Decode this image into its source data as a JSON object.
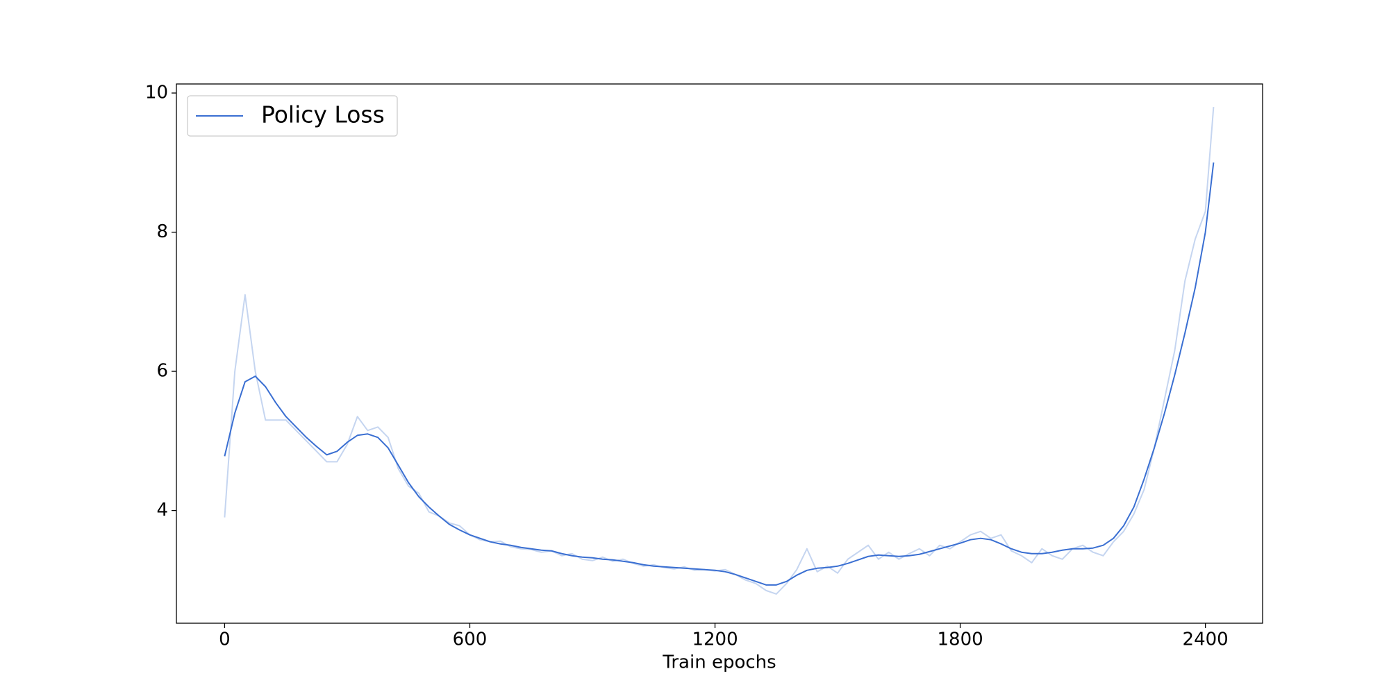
{
  "chart_data": {
    "type": "line",
    "xlabel": "Train epochs",
    "x": [
      0,
      25,
      50,
      75,
      100,
      125,
      150,
      175,
      200,
      225,
      250,
      275,
      300,
      325,
      350,
      375,
      400,
      425,
      450,
      475,
      500,
      525,
      550,
      575,
      600,
      625,
      650,
      675,
      700,
      725,
      750,
      775,
      800,
      825,
      850,
      875,
      900,
      925,
      950,
      975,
      1000,
      1025,
      1050,
      1075,
      1100,
      1125,
      1150,
      1175,
      1200,
      1225,
      1250,
      1275,
      1300,
      1325,
      1350,
      1375,
      1400,
      1425,
      1450,
      1475,
      1500,
      1525,
      1550,
      1575,
      1600,
      1625,
      1650,
      1675,
      1700,
      1725,
      1750,
      1775,
      1800,
      1825,
      1850,
      1875,
      1900,
      1925,
      1950,
      1975,
      2000,
      2025,
      2050,
      2075,
      2100,
      2125,
      2150,
      2175,
      2200,
      2225,
      2250,
      2275,
      2300,
      2325,
      2350,
      2375,
      2400,
      2420
    ],
    "series": [
      {
        "color": "#c5d5f0",
        "values": [
          3.9,
          6.0,
          7.1,
          6.0,
          5.3,
          5.3,
          5.3,
          5.15,
          5.0,
          4.85,
          4.7,
          4.7,
          4.95,
          5.35,
          5.15,
          5.2,
          5.05,
          4.6,
          4.35,
          4.25,
          3.98,
          3.92,
          3.82,
          3.78,
          3.65,
          3.58,
          3.55,
          3.56,
          3.48,
          3.45,
          3.44,
          3.4,
          3.42,
          3.35,
          3.38,
          3.3,
          3.28,
          3.33,
          3.27,
          3.3,
          3.24,
          3.2,
          3.22,
          3.18,
          3.16,
          3.19,
          3.14,
          3.15,
          3.13,
          3.15,
          3.08,
          3.0,
          2.95,
          2.85,
          2.8,
          2.95,
          3.15,
          3.45,
          3.12,
          3.2,
          3.1,
          3.3,
          3.4,
          3.5,
          3.3,
          3.4,
          3.3,
          3.38,
          3.45,
          3.35,
          3.5,
          3.45,
          3.55,
          3.65,
          3.7,
          3.6,
          3.65,
          3.42,
          3.35,
          3.25,
          3.45,
          3.35,
          3.3,
          3.45,
          3.5,
          3.4,
          3.35,
          3.55,
          3.7,
          3.95,
          4.3,
          4.9,
          5.6,
          6.3,
          7.3,
          7.9,
          8.3,
          9.8
        ]
      },
      {
        "name": "Policy Loss",
        "color": "#3a6fd2",
        "values": [
          4.78,
          5.4,
          5.85,
          5.93,
          5.78,
          5.55,
          5.35,
          5.2,
          5.05,
          4.92,
          4.8,
          4.85,
          4.98,
          5.08,
          5.1,
          5.05,
          4.9,
          4.65,
          4.4,
          4.2,
          4.05,
          3.92,
          3.8,
          3.72,
          3.65,
          3.6,
          3.55,
          3.52,
          3.5,
          3.47,
          3.45,
          3.43,
          3.42,
          3.38,
          3.35,
          3.33,
          3.32,
          3.3,
          3.29,
          3.27,
          3.25,
          3.22,
          3.2,
          3.19,
          3.18,
          3.17,
          3.16,
          3.15,
          3.14,
          3.12,
          3.08,
          3.03,
          2.98,
          2.93,
          2.93,
          2.98,
          3.07,
          3.14,
          3.17,
          3.18,
          3.2,
          3.24,
          3.29,
          3.34,
          3.36,
          3.35,
          3.34,
          3.35,
          3.37,
          3.41,
          3.45,
          3.49,
          3.53,
          3.58,
          3.6,
          3.58,
          3.52,
          3.45,
          3.4,
          3.38,
          3.38,
          3.4,
          3.43,
          3.45,
          3.45,
          3.46,
          3.5,
          3.6,
          3.78,
          4.05,
          4.45,
          4.9,
          5.4,
          5.95,
          6.55,
          7.2,
          8.0,
          9.0
        ]
      }
    ],
    "xlim": [
      -118,
      2540
    ],
    "xticks": [
      0,
      600,
      1200,
      1800,
      2400
    ],
    "ylim": [
      2.38,
      10.13
    ],
    "yticks": [
      4,
      6,
      8,
      10
    ],
    "legend": "upper left"
  }
}
